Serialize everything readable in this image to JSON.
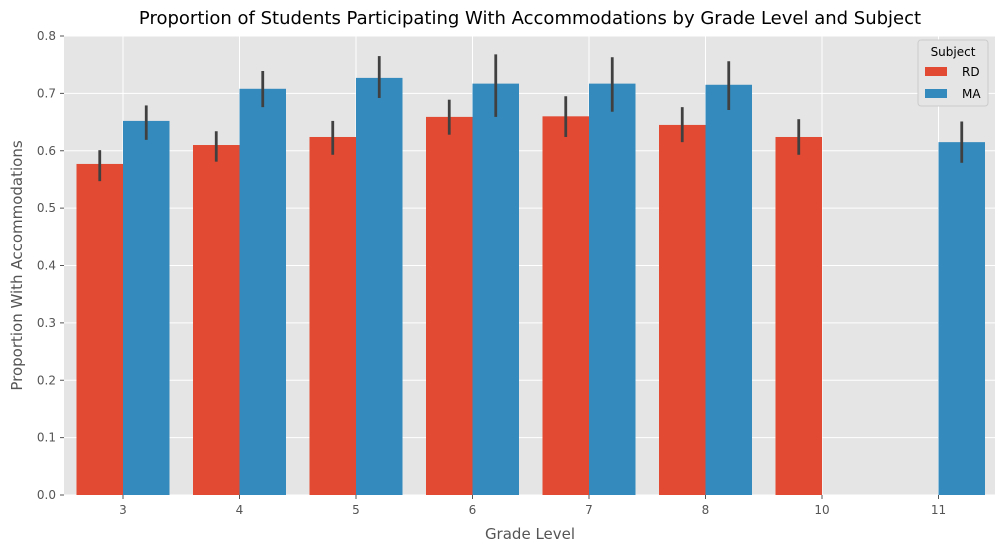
{
  "chart_data": {
    "type": "bar",
    "title": "Proportion of Students Participating With Accommodations by Grade Level and Subject",
    "xlabel": "Grade Level",
    "ylabel": "Proportion With Accommodations",
    "categories": [
      "3",
      "4",
      "5",
      "6",
      "7",
      "8",
      "10",
      "11"
    ],
    "ylim": [
      0,
      0.8
    ],
    "yticks": [
      "0.0",
      "0.1",
      "0.2",
      "0.3",
      "0.4",
      "0.5",
      "0.6",
      "0.7",
      "0.8"
    ],
    "grid": true,
    "legend": {
      "title": "Subject",
      "position": "top-right"
    },
    "series": [
      {
        "name": "RD",
        "color": "#E24A33",
        "values": [
          0.577,
          0.61,
          0.624,
          0.659,
          0.66,
          0.645,
          0.624,
          null
        ],
        "error_low": [
          0.547,
          0.581,
          0.593,
          0.628,
          0.624,
          0.615,
          0.593,
          null
        ],
        "error_high": [
          0.601,
          0.634,
          0.652,
          0.689,
          0.695,
          0.676,
          0.655,
          null
        ]
      },
      {
        "name": "MA",
        "color": "#348ABD",
        "values": [
          0.652,
          0.708,
          0.727,
          0.717,
          0.717,
          0.715,
          null,
          0.615
        ],
        "error_low": [
          0.619,
          0.676,
          0.692,
          0.659,
          0.668,
          0.671,
          null,
          0.579
        ],
        "error_high": [
          0.679,
          0.739,
          0.765,
          0.768,
          0.763,
          0.756,
          null,
          0.651
        ]
      }
    ]
  }
}
